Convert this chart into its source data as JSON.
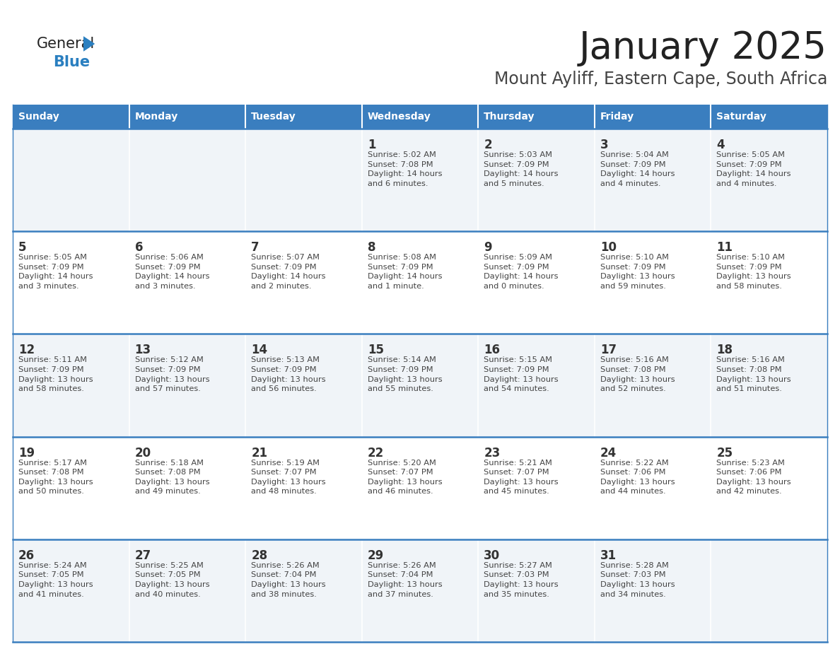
{
  "title": "January 2025",
  "subtitle": "Mount Ayliff, Eastern Cape, South Africa",
  "days_of_week": [
    "Sunday",
    "Monday",
    "Tuesday",
    "Wednesday",
    "Thursday",
    "Friday",
    "Saturday"
  ],
  "header_bg": "#3a7ebf",
  "header_text": "#ffffff",
  "cell_bg_light": "#f0f4f8",
  "cell_bg_white": "#ffffff",
  "cell_text": "#444444",
  "day_num_color": "#333333",
  "border_color": "#3a7ebf",
  "title_color": "#222222",
  "subtitle_color": "#444444",
  "logo_general_color": "#222222",
  "logo_blue_color": "#2a7fc0",
  "logo_triangle_color": "#2a7fc0",
  "weeks": [
    [
      {
        "day": null,
        "text": ""
      },
      {
        "day": null,
        "text": ""
      },
      {
        "day": null,
        "text": ""
      },
      {
        "day": 1,
        "text": "Sunrise: 5:02 AM\nSunset: 7:08 PM\nDaylight: 14 hours\nand 6 minutes."
      },
      {
        "day": 2,
        "text": "Sunrise: 5:03 AM\nSunset: 7:09 PM\nDaylight: 14 hours\nand 5 minutes."
      },
      {
        "day": 3,
        "text": "Sunrise: 5:04 AM\nSunset: 7:09 PM\nDaylight: 14 hours\nand 4 minutes."
      },
      {
        "day": 4,
        "text": "Sunrise: 5:05 AM\nSunset: 7:09 PM\nDaylight: 14 hours\nand 4 minutes."
      }
    ],
    [
      {
        "day": 5,
        "text": "Sunrise: 5:05 AM\nSunset: 7:09 PM\nDaylight: 14 hours\nand 3 minutes."
      },
      {
        "day": 6,
        "text": "Sunrise: 5:06 AM\nSunset: 7:09 PM\nDaylight: 14 hours\nand 3 minutes."
      },
      {
        "day": 7,
        "text": "Sunrise: 5:07 AM\nSunset: 7:09 PM\nDaylight: 14 hours\nand 2 minutes."
      },
      {
        "day": 8,
        "text": "Sunrise: 5:08 AM\nSunset: 7:09 PM\nDaylight: 14 hours\nand 1 minute."
      },
      {
        "day": 9,
        "text": "Sunrise: 5:09 AM\nSunset: 7:09 PM\nDaylight: 14 hours\nand 0 minutes."
      },
      {
        "day": 10,
        "text": "Sunrise: 5:10 AM\nSunset: 7:09 PM\nDaylight: 13 hours\nand 59 minutes."
      },
      {
        "day": 11,
        "text": "Sunrise: 5:10 AM\nSunset: 7:09 PM\nDaylight: 13 hours\nand 58 minutes."
      }
    ],
    [
      {
        "day": 12,
        "text": "Sunrise: 5:11 AM\nSunset: 7:09 PM\nDaylight: 13 hours\nand 58 minutes."
      },
      {
        "day": 13,
        "text": "Sunrise: 5:12 AM\nSunset: 7:09 PM\nDaylight: 13 hours\nand 57 minutes."
      },
      {
        "day": 14,
        "text": "Sunrise: 5:13 AM\nSunset: 7:09 PM\nDaylight: 13 hours\nand 56 minutes."
      },
      {
        "day": 15,
        "text": "Sunrise: 5:14 AM\nSunset: 7:09 PM\nDaylight: 13 hours\nand 55 minutes."
      },
      {
        "day": 16,
        "text": "Sunrise: 5:15 AM\nSunset: 7:09 PM\nDaylight: 13 hours\nand 54 minutes."
      },
      {
        "day": 17,
        "text": "Sunrise: 5:16 AM\nSunset: 7:08 PM\nDaylight: 13 hours\nand 52 minutes."
      },
      {
        "day": 18,
        "text": "Sunrise: 5:16 AM\nSunset: 7:08 PM\nDaylight: 13 hours\nand 51 minutes."
      }
    ],
    [
      {
        "day": 19,
        "text": "Sunrise: 5:17 AM\nSunset: 7:08 PM\nDaylight: 13 hours\nand 50 minutes."
      },
      {
        "day": 20,
        "text": "Sunrise: 5:18 AM\nSunset: 7:08 PM\nDaylight: 13 hours\nand 49 minutes."
      },
      {
        "day": 21,
        "text": "Sunrise: 5:19 AM\nSunset: 7:07 PM\nDaylight: 13 hours\nand 48 minutes."
      },
      {
        "day": 22,
        "text": "Sunrise: 5:20 AM\nSunset: 7:07 PM\nDaylight: 13 hours\nand 46 minutes."
      },
      {
        "day": 23,
        "text": "Sunrise: 5:21 AM\nSunset: 7:07 PM\nDaylight: 13 hours\nand 45 minutes."
      },
      {
        "day": 24,
        "text": "Sunrise: 5:22 AM\nSunset: 7:06 PM\nDaylight: 13 hours\nand 44 minutes."
      },
      {
        "day": 25,
        "text": "Sunrise: 5:23 AM\nSunset: 7:06 PM\nDaylight: 13 hours\nand 42 minutes."
      }
    ],
    [
      {
        "day": 26,
        "text": "Sunrise: 5:24 AM\nSunset: 7:05 PM\nDaylight: 13 hours\nand 41 minutes."
      },
      {
        "day": 27,
        "text": "Sunrise: 5:25 AM\nSunset: 7:05 PM\nDaylight: 13 hours\nand 40 minutes."
      },
      {
        "day": 28,
        "text": "Sunrise: 5:26 AM\nSunset: 7:04 PM\nDaylight: 13 hours\nand 38 minutes."
      },
      {
        "day": 29,
        "text": "Sunrise: 5:26 AM\nSunset: 7:04 PM\nDaylight: 13 hours\nand 37 minutes."
      },
      {
        "day": 30,
        "text": "Sunrise: 5:27 AM\nSunset: 7:03 PM\nDaylight: 13 hours\nand 35 minutes."
      },
      {
        "day": 31,
        "text": "Sunrise: 5:28 AM\nSunset: 7:03 PM\nDaylight: 13 hours\nand 34 minutes."
      },
      {
        "day": null,
        "text": ""
      }
    ]
  ]
}
